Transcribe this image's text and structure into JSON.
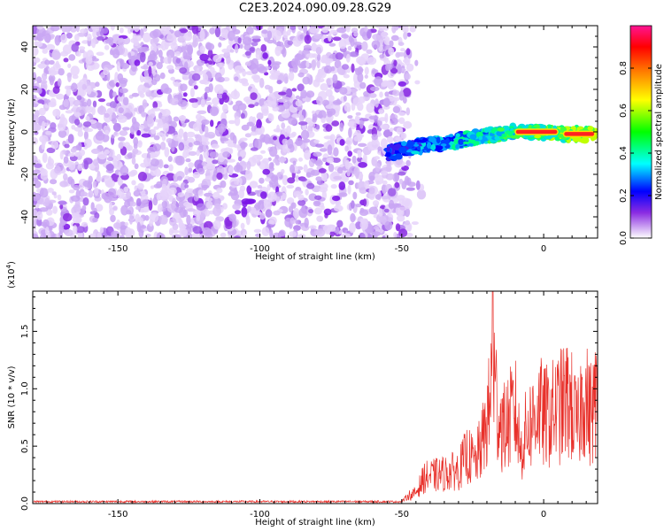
{
  "title": "C2E3.2024.090.09.28.G29",
  "chart_data": [
    {
      "type": "heatmap",
      "title": "C2E3.2024.090.09.28.G29",
      "xlabel": "Height of straight line (km)",
      "ylabel": "Frequency (Hz)",
      "xlim": [
        -180,
        19
      ],
      "ylim": [
        -50,
        50
      ],
      "xticks": [
        -150,
        -100,
        -50,
        0
      ],
      "yticks": [
        -40,
        -20,
        0,
        20,
        40
      ],
      "noise_region_x": [
        -180,
        -47
      ],
      "signal_track": {
        "x": [
          -55,
          -45,
          -35,
          -25,
          -15,
          -10,
          0,
          10,
          19
        ],
        "frequency": [
          -10,
          -7,
          -5,
          -3,
          -1,
          0,
          0,
          -1,
          -1
        ]
      },
      "colorbar": {
        "label": "Normalized spectral amplitude",
        "ticks": [
          "0.0",
          "0.2",
          "0.4",
          "0.6",
          "0.8"
        ],
        "range": [
          0,
          1
        ],
        "colors": [
          "#ffffff",
          "#8a2be2",
          "#0000ff",
          "#00ffff",
          "#00ff00",
          "#ffff00",
          "#ff8000",
          "#ff0000",
          "#ff1493"
        ]
      }
    },
    {
      "type": "line",
      "xlabel": "Height of straight line (km)",
      "ylabel": "SNR (10 * v/v)",
      "ylabel_scale": "(x10",
      "ylabel_exponent": "4",
      "ylabel_scale_close": ")",
      "xlim": [
        -180,
        19
      ],
      "ylim": [
        0,
        18500
      ],
      "xticks": [
        -150,
        -100,
        -50,
        0
      ],
      "yticks": [
        "0.0",
        "0.5",
        "1.0",
        "1.5"
      ],
      "color": "#e8302a",
      "envelope": {
        "x": [
          -180,
          -50,
          -45,
          -42,
          -38,
          -35,
          -30,
          -27,
          -24,
          -21,
          -19,
          -18,
          -16,
          -14,
          -10,
          -8,
          -6,
          -4,
          -2,
          0,
          3,
          6,
          9,
          12,
          14,
          16,
          19
        ],
        "y": [
          200,
          200,
          1500,
          3500,
          3800,
          4000,
          4500,
          6500,
          5500,
          9000,
          13000,
          18500,
          12000,
          10000,
          12500,
          7000,
          10000,
          11000,
          13000,
          11500,
          12000,
          13000,
          14000,
          10000,
          15500,
          12000,
          14000
        ]
      }
    }
  ]
}
